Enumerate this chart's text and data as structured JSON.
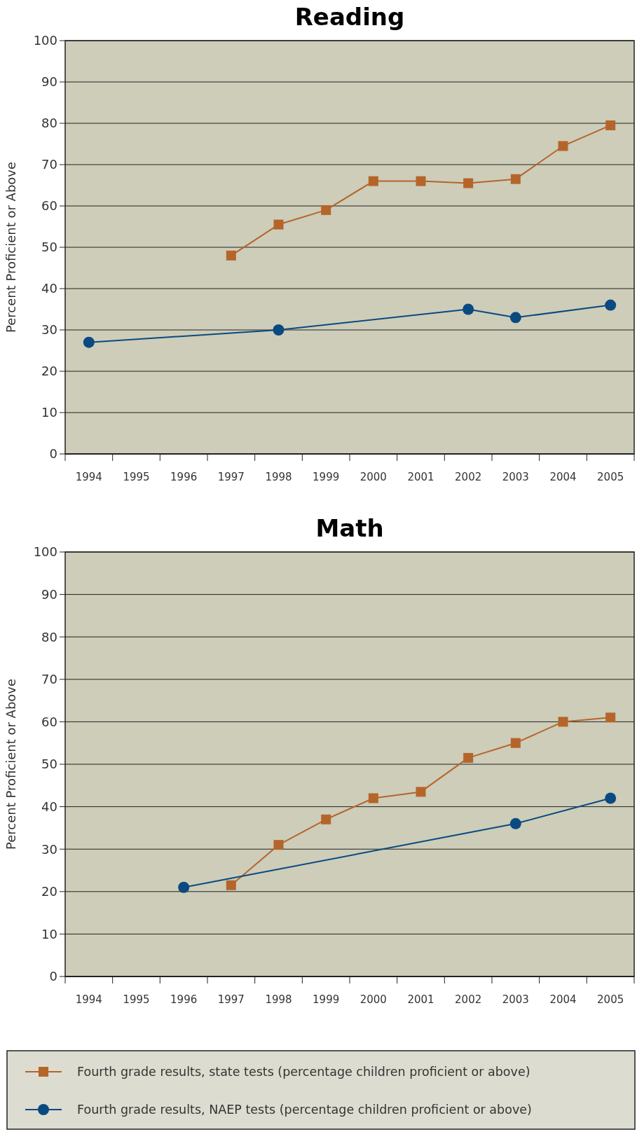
{
  "chart_data": [
    {
      "type": "line",
      "title": "Reading",
      "ylabel": "Percent Proficient or Above",
      "categories": [
        "1994",
        "1995",
        "1996",
        "1997",
        "1998",
        "1999",
        "2000",
        "2001",
        "2002",
        "2003",
        "2004",
        "2005"
      ],
      "ylim": [
        0,
        100
      ],
      "yticks": [
        0,
        10,
        20,
        30,
        40,
        50,
        60,
        70,
        80,
        90,
        100
      ],
      "grid": "y",
      "legend": false,
      "series": [
        {
          "color": "#b5652a",
          "marker": "square",
          "values": [
            null,
            null,
            null,
            48,
            55.5,
            59,
            66,
            66,
            65.5,
            66.5,
            74.5,
            79.5
          ]
        },
        {
          "color": "#0a4a80",
          "marker": "circle",
          "values": [
            27,
            null,
            null,
            null,
            30,
            null,
            null,
            null,
            35,
            33,
            null,
            36
          ]
        }
      ]
    },
    {
      "type": "line",
      "title": "Math",
      "ylabel": "Percent Proficient or Above",
      "categories": [
        "1994",
        "1995",
        "1996",
        "1997",
        "1998",
        "1999",
        "2000",
        "2001",
        "2002",
        "2003",
        "2004",
        "2005"
      ],
      "ylim": [
        0,
        100
      ],
      "yticks": [
        0,
        10,
        20,
        30,
        40,
        50,
        60,
        70,
        80,
        90,
        100
      ],
      "grid": "y",
      "legend": "bottom",
      "series": [
        {
          "name": "Fourth grade results, state tests (percentage children proficient or above)",
          "color": "#b5652a",
          "marker": "square",
          "values": [
            null,
            null,
            null,
            21.5,
            31,
            37,
            42,
            43.5,
            51.5,
            55,
            60,
            61
          ]
        },
        {
          "name": "Fourth grade results, NAEP tests (percentage children proficient or above)",
          "color": "#0a4a80",
          "marker": "circle",
          "values": [
            null,
            null,
            21,
            null,
            null,
            null,
            null,
            null,
            null,
            36,
            null,
            42
          ]
        }
      ]
    }
  ]
}
